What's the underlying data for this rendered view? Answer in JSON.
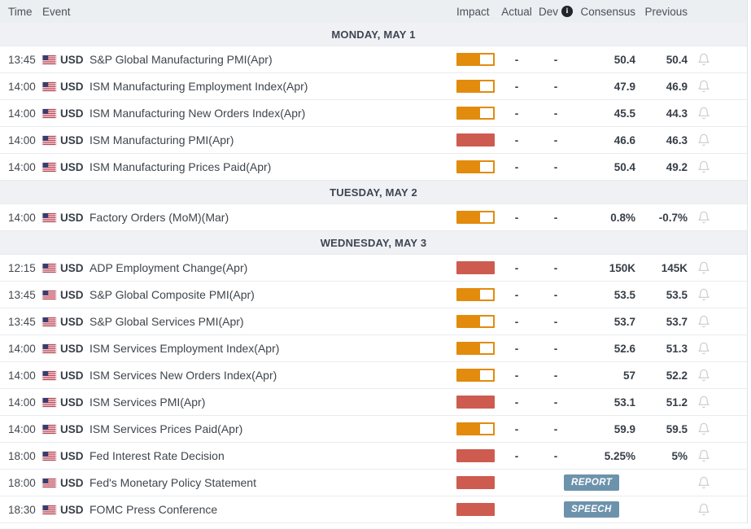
{
  "header": {
    "time": "Time",
    "event": "Event",
    "impact": "Impact",
    "actual": "Actual",
    "dev": "Dev",
    "consensus": "Consensus",
    "previous": "Previous"
  },
  "colors": {
    "impact_medium": "#E28B0D",
    "impact_high": "#CE5B50",
    "badge_bg": "#6D93AC",
    "header_bg": "#ECEFF1",
    "separator_bg": "#F0F1F4"
  },
  "sections": [
    {
      "label": "MONDAY, MAY 1",
      "rows": [
        {
          "time": "13:45",
          "currency": "USD",
          "event": "S&P Global Manufacturing PMI(Apr)",
          "impact": "medium",
          "actual": "-",
          "dev": "-",
          "consensus": "50.4",
          "previous": "50.4"
        },
        {
          "time": "14:00",
          "currency": "USD",
          "event": "ISM Manufacturing Employment Index(Apr)",
          "impact": "medium",
          "actual": "-",
          "dev": "-",
          "consensus": "47.9",
          "previous": "46.9"
        },
        {
          "time": "14:00",
          "currency": "USD",
          "event": "ISM Manufacturing New Orders Index(Apr)",
          "impact": "medium",
          "actual": "-",
          "dev": "-",
          "consensus": "45.5",
          "previous": "44.3"
        },
        {
          "time": "14:00",
          "currency": "USD",
          "event": "ISM Manufacturing PMI(Apr)",
          "impact": "high",
          "actual": "-",
          "dev": "-",
          "consensus": "46.6",
          "previous": "46.3"
        },
        {
          "time": "14:00",
          "currency": "USD",
          "event": "ISM Manufacturing Prices Paid(Apr)",
          "impact": "medium",
          "actual": "-",
          "dev": "-",
          "consensus": "50.4",
          "previous": "49.2"
        }
      ]
    },
    {
      "label": "TUESDAY, MAY 2",
      "rows": [
        {
          "time": "14:00",
          "currency": "USD",
          "event": "Factory Orders (MoM)(Mar)",
          "impact": "medium",
          "actual": "-",
          "dev": "-",
          "consensus": "0.8%",
          "previous": "-0.7%"
        }
      ]
    },
    {
      "label": "WEDNESDAY, MAY 3",
      "rows": [
        {
          "time": "12:15",
          "currency": "USD",
          "event": "ADP Employment Change(Apr)",
          "impact": "high",
          "actual": "-",
          "dev": "-",
          "consensus": "150K",
          "previous": "145K"
        },
        {
          "time": "13:45",
          "currency": "USD",
          "event": "S&P Global Composite PMI(Apr)",
          "impact": "medium",
          "actual": "-",
          "dev": "-",
          "consensus": "53.5",
          "previous": "53.5"
        },
        {
          "time": "13:45",
          "currency": "USD",
          "event": "S&P Global Services PMI(Apr)",
          "impact": "medium",
          "actual": "-",
          "dev": "-",
          "consensus": "53.7",
          "previous": "53.7"
        },
        {
          "time": "14:00",
          "currency": "USD",
          "event": "ISM Services Employment Index(Apr)",
          "impact": "medium",
          "actual": "-",
          "dev": "-",
          "consensus": "52.6",
          "previous": "51.3"
        },
        {
          "time": "14:00",
          "currency": "USD",
          "event": "ISM Services New Orders Index(Apr)",
          "impact": "medium",
          "actual": "-",
          "dev": "-",
          "consensus": "57",
          "previous": "52.2"
        },
        {
          "time": "14:00",
          "currency": "USD",
          "event": "ISM Services PMI(Apr)",
          "impact": "high",
          "actual": "-",
          "dev": "-",
          "consensus": "53.1",
          "previous": "51.2"
        },
        {
          "time": "14:00",
          "currency": "USD",
          "event": "ISM Services Prices Paid(Apr)",
          "impact": "medium",
          "actual": "-",
          "dev": "-",
          "consensus": "59.9",
          "previous": "59.5"
        },
        {
          "time": "18:00",
          "currency": "USD",
          "event": "Fed Interest Rate Decision",
          "impact": "high",
          "actual": "-",
          "dev": "-",
          "consensus": "5.25%",
          "previous": "5%"
        },
        {
          "time": "18:00",
          "currency": "USD",
          "event": "Fed's Monetary Policy Statement",
          "impact": "high",
          "badge": "REPORT"
        },
        {
          "time": "18:30",
          "currency": "USD",
          "event": "FOMC Press Conference",
          "impact": "high",
          "badge": "SPEECH"
        }
      ]
    }
  ]
}
